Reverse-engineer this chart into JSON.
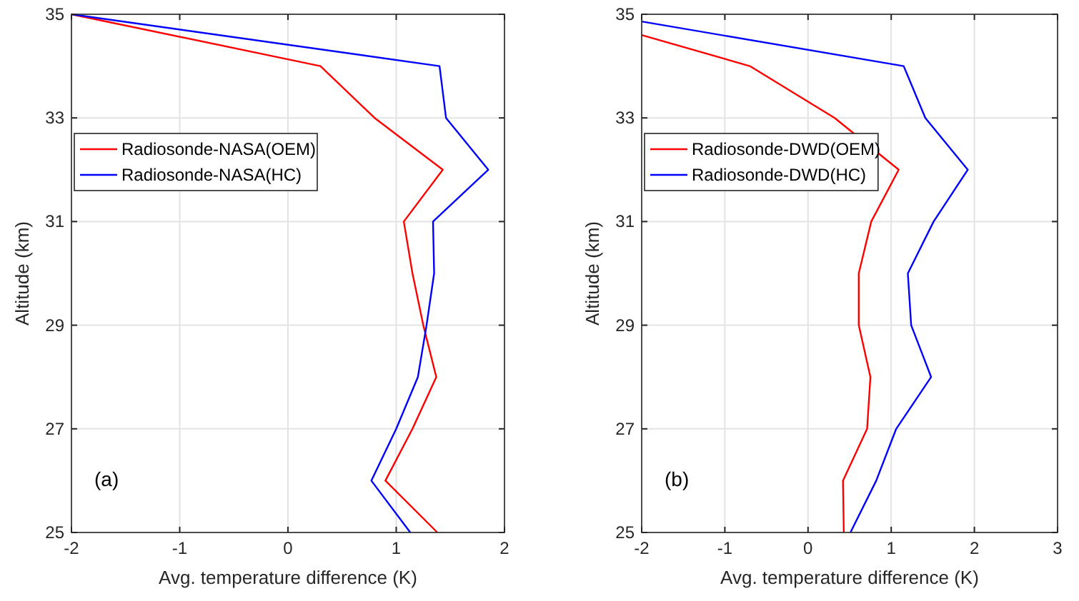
{
  "chart_data": [
    {
      "type": "line",
      "xlabel": "Avg. temperature difference (K)",
      "ylabel": "Altitude (km)",
      "xlim": [
        -2,
        2
      ],
      "xticks": [
        -2,
        -1,
        0,
        1,
        2
      ],
      "ylim": [
        25,
        35
      ],
      "yticks": [
        25,
        27,
        29,
        31,
        33,
        35
      ],
      "grid": true,
      "legend": "left",
      "annotations": [
        "(a)"
      ],
      "series": [
        {
          "name": "Radiosonde-NASA(OEM)",
          "color": "#ff0000",
          "x": [
            1.38,
            0.9,
            1.15,
            1.37,
            1.25,
            1.15,
            1.07,
            1.43,
            0.8,
            0.3,
            -2
          ],
          "values": [
            25,
            26,
            27,
            28,
            29,
            30,
            31,
            32,
            33,
            34,
            35
          ]
        },
        {
          "name": "Radiosonde-NASA(HC)",
          "color": "#0000ff",
          "x": [
            1.13,
            0.77,
            1.0,
            1.2,
            1.28,
            1.35,
            1.34,
            1.85,
            1.46,
            1.4,
            -2
          ],
          "values": [
            25,
            26,
            27,
            28,
            29,
            30,
            31,
            32,
            33,
            34,
            35
          ]
        }
      ]
    },
    {
      "type": "line",
      "xlabel": "Avg. temperature difference (K)",
      "ylabel": "Altitude (km)",
      "xlim": [
        -2,
        3
      ],
      "xticks": [
        -2,
        -1,
        0,
        1,
        2,
        3
      ],
      "ylim": [
        25,
        35
      ],
      "yticks": [
        25,
        27,
        29,
        31,
        33,
        35
      ],
      "grid": true,
      "legend": "left",
      "annotations": [
        "(b)"
      ],
      "series": [
        {
          "name": "Radiosonde-DWD(OEM)",
          "color": "#ff0000",
          "x": [
            0.43,
            0.42,
            0.71,
            0.75,
            0.61,
            0.61,
            0.76,
            1.09,
            0.32,
            -0.7,
            -2
          ],
          "values": [
            25,
            26,
            27,
            28,
            29,
            30,
            31,
            32,
            33,
            34,
            34.6
          ]
        },
        {
          "name": "Radiosonde-DWD(HC)",
          "color": "#0000ff",
          "x": [
            0.51,
            0.82,
            1.06,
            1.48,
            1.24,
            1.2,
            1.51,
            1.92,
            1.41,
            1.15,
            -2
          ],
          "values": [
            25,
            26,
            27,
            28,
            29,
            30,
            31,
            32,
            33,
            34,
            34.86
          ]
        }
      ]
    }
  ]
}
